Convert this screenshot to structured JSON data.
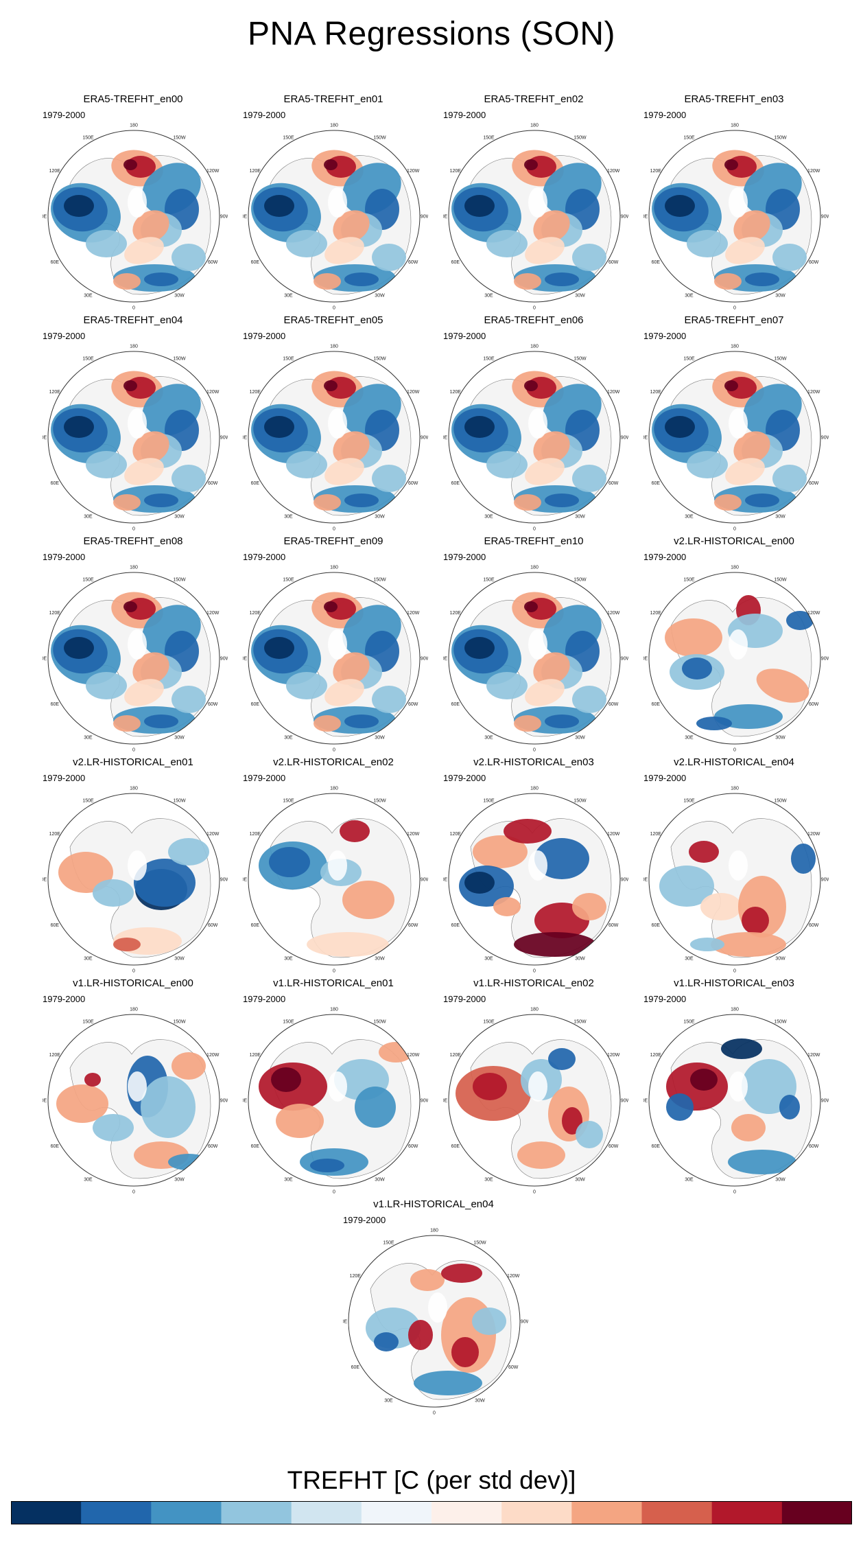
{
  "title": "PNA Regressions (SON)",
  "period": "1979-2000",
  "lon_labels": [
    "180",
    "150E",
    "120E",
    "90E",
    "60E",
    "30E",
    "0",
    "30W",
    "60W",
    "90W",
    "120W",
    "150W"
  ],
  "colorbar": {
    "title": "TREFHT [C (per std dev)]",
    "colors": [
      "#053061",
      "#2166ac",
      "#4393c3",
      "#92c5de",
      "#d1e5f0",
      "#f0f5fa",
      "#fdf0ea",
      "#fddbc7",
      "#f4a582",
      "#d6604d",
      "#b2182b",
      "#67001f"
    ]
  },
  "panels": [
    {
      "title": "ERA5-TREFHT_en00",
      "pattern": "era5"
    },
    {
      "title": "ERA5-TREFHT_en01",
      "pattern": "era5"
    },
    {
      "title": "ERA5-TREFHT_en02",
      "pattern": "era5"
    },
    {
      "title": "ERA5-TREFHT_en03",
      "pattern": "era5"
    },
    {
      "title": "ERA5-TREFHT_en04",
      "pattern": "era5"
    },
    {
      "title": "ERA5-TREFHT_en05",
      "pattern": "era5"
    },
    {
      "title": "ERA5-TREFHT_en06",
      "pattern": "era5"
    },
    {
      "title": "ERA5-TREFHT_en07",
      "pattern": "era5"
    },
    {
      "title": "ERA5-TREFHT_en08",
      "pattern": "era5"
    },
    {
      "title": "ERA5-TREFHT_en09",
      "pattern": "era5"
    },
    {
      "title": "ERA5-TREFHT_en10",
      "pattern": "era5"
    },
    {
      "title": "v2.LR-HISTORICAL_en00",
      "pattern": "v2a"
    },
    {
      "title": "v2.LR-HISTORICAL_en01",
      "pattern": "v2b"
    },
    {
      "title": "v2.LR-HISTORICAL_en02",
      "pattern": "v2c"
    },
    {
      "title": "v2.LR-HISTORICAL_en03",
      "pattern": "v2d"
    },
    {
      "title": "v2.LR-HISTORICAL_en04",
      "pattern": "v2e"
    },
    {
      "title": "v1.LR-HISTORICAL_en00",
      "pattern": "v1a"
    },
    {
      "title": "v1.LR-HISTORICAL_en01",
      "pattern": "v1b"
    },
    {
      "title": "v1.LR-HISTORICAL_en02",
      "pattern": "v1c"
    },
    {
      "title": "v1.LR-HISTORICAL_en03",
      "pattern": "v1d"
    },
    {
      "title": "v1.LR-HISTORICAL_en04",
      "pattern": "v1e"
    }
  ]
}
